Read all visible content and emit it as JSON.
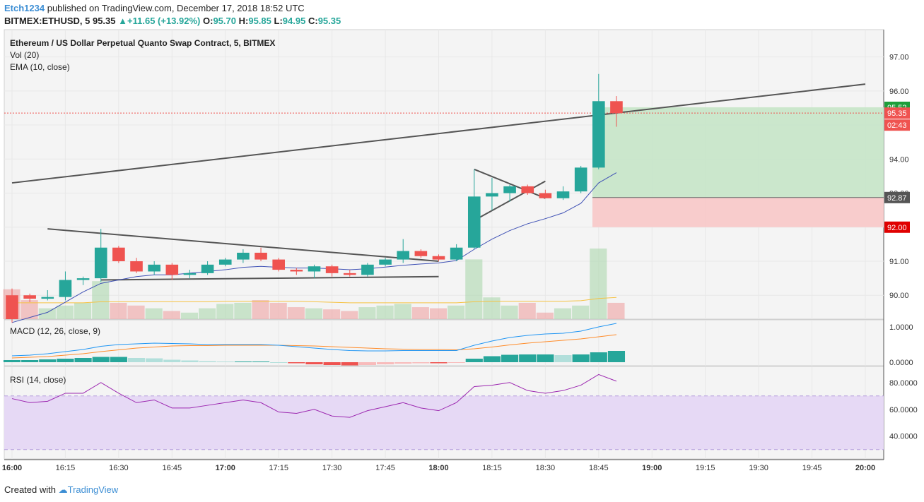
{
  "header": {
    "user": "Etch1234",
    "published": "published on TradingView.com, December 17, 2018 18:52 UTC",
    "symbol": "BITMEX:ETHUSD, 5",
    "last": "95.35",
    "change": "+11.65 (+13.92%)",
    "ohlc": {
      "o_label": "O:",
      "o": "95.70",
      "h_label": "H:",
      "h": "95.85",
      "l_label": "L:",
      "l": "94.95",
      "c_label": "C:",
      "c": "95.35"
    }
  },
  "footer": {
    "created_with": "Created with",
    "brand": "TradingView"
  },
  "colors": {
    "up": "#26a69a",
    "down": "#ef5350",
    "ema": "#3f51b5",
    "macd": "#2196f3",
    "signal": "#ff8c2a",
    "rsi": "#9c27b0",
    "vol_ma": "#f5c242",
    "profit_zone": "#c8e6c9",
    "loss_zone": "#f8c9c9",
    "trendline": "#555555"
  },
  "chart_data": [
    {
      "type": "candlestick",
      "title": "Ethereum / US Dollar Perpetual Quanto Swap Contract, 5, BITMEX",
      "indicators": [
        "Vol (20)",
        "EMA (10, close)"
      ],
      "x": [
        "16:00",
        "16:05",
        "16:10",
        "16:15",
        "16:20",
        "16:25",
        "16:30",
        "16:35",
        "16:40",
        "16:45",
        "16:50",
        "16:55",
        "17:00",
        "17:05",
        "17:10",
        "17:15",
        "17:20",
        "17:25",
        "17:30",
        "17:35",
        "17:40",
        "17:45",
        "17:50",
        "17:55",
        "18:00",
        "18:05",
        "18:10",
        "18:15",
        "18:20",
        "18:25",
        "18:30",
        "18:35",
        "18:40",
        "18:45",
        "18:50"
      ],
      "ohlc": [
        [
          90.0,
          90.2,
          89.2,
          89.3
        ],
        [
          90.0,
          90.05,
          89.8,
          89.9
        ],
        [
          89.9,
          90.15,
          89.85,
          89.95
        ],
        [
          89.95,
          90.7,
          89.85,
          90.45
        ],
        [
          90.45,
          90.55,
          90.3,
          90.5
        ],
        [
          90.5,
          91.95,
          90.4,
          91.4
        ],
        [
          91.4,
          91.45,
          90.95,
          91.0
        ],
        [
          91.0,
          91.1,
          90.65,
          90.7
        ],
        [
          90.7,
          91.0,
          90.6,
          90.9
        ],
        [
          90.9,
          90.95,
          90.45,
          90.6
        ],
        [
          90.6,
          90.75,
          90.5,
          90.65
        ],
        [
          90.65,
          91.0,
          90.6,
          90.9
        ],
        [
          90.9,
          91.1,
          90.85,
          91.05
        ],
        [
          91.05,
          91.35,
          90.95,
          91.25
        ],
        [
          91.25,
          91.4,
          91.0,
          91.05
        ],
        [
          91.05,
          91.1,
          90.7,
          90.75
        ],
        [
          90.75,
          90.8,
          90.6,
          90.7
        ],
        [
          90.7,
          90.9,
          90.5,
          90.85
        ],
        [
          90.85,
          90.9,
          90.55,
          90.65
        ],
        [
          90.65,
          90.75,
          90.55,
          90.6
        ],
        [
          90.6,
          90.95,
          90.55,
          90.9
        ],
        [
          90.9,
          91.1,
          90.85,
          91.05
        ],
        [
          91.05,
          91.65,
          90.95,
          91.3
        ],
        [
          91.3,
          91.35,
          91.1,
          91.15
        ],
        [
          91.15,
          91.2,
          91.0,
          91.05
        ],
        [
          91.05,
          91.5,
          91.0,
          91.4
        ],
        [
          91.4,
          93.7,
          91.35,
          92.9
        ],
        [
          92.9,
          93.45,
          92.5,
          93.0
        ],
        [
          93.0,
          93.25,
          92.75,
          93.2
        ],
        [
          93.2,
          93.25,
          92.95,
          93.0
        ],
        [
          93.0,
          93.1,
          92.9,
          92.85
        ],
        [
          92.85,
          93.2,
          92.8,
          93.05
        ],
        [
          93.05,
          93.8,
          93.0,
          93.75
        ],
        [
          93.75,
          96.5,
          93.7,
          95.7
        ],
        [
          95.7,
          95.85,
          94.95,
          95.35
        ]
      ],
      "ema": [
        89.2,
        89.35,
        89.5,
        89.8,
        90.1,
        90.35,
        90.45,
        90.55,
        90.6,
        90.6,
        90.65,
        90.7,
        90.75,
        90.82,
        90.85,
        90.82,
        90.8,
        90.8,
        90.78,
        90.75,
        90.78,
        90.83,
        90.88,
        90.92,
        90.95,
        91.02,
        91.35,
        91.65,
        91.9,
        92.1,
        92.25,
        92.42,
        92.7,
        93.3,
        93.6
      ],
      "volume": [
        0.55,
        0.35,
        0.2,
        0.25,
        0.3,
        0.7,
        0.3,
        0.25,
        0.2,
        0.15,
        0.12,
        0.2,
        0.28,
        0.3,
        0.35,
        0.3,
        0.22,
        0.2,
        0.18,
        0.15,
        0.22,
        0.25,
        0.28,
        0.22,
        0.2,
        0.25,
        1.1,
        0.4,
        0.25,
        0.3,
        0.12,
        0.2,
        0.25,
        1.3,
        0.3
      ],
      "vol_ma": [
        0.3,
        0.3,
        0.3,
        0.3,
        0.3,
        0.32,
        0.32,
        0.32,
        0.32,
        0.32,
        0.32,
        0.32,
        0.33,
        0.33,
        0.33,
        0.33,
        0.33,
        0.32,
        0.31,
        0.3,
        0.3,
        0.3,
        0.3,
        0.3,
        0.3,
        0.3,
        0.32,
        0.33,
        0.33,
        0.33,
        0.33,
        0.33,
        0.34,
        0.38,
        0.4
      ],
      "price_scale": [
        "97.00",
        "96.00",
        "95.00",
        "94.00",
        "93.00",
        "92.00",
        "91.00",
        "90.00"
      ],
      "price_labels": {
        "target": "95.52",
        "last": "95.35",
        "countdown": "02:43",
        "entry": "92.87",
        "stop": "92.00"
      },
      "time_labels": [
        "16:00",
        "16:15",
        "16:30",
        "16:45",
        "17:00",
        "17:15",
        "17:30",
        "17:45",
        "18:00",
        "18:15",
        "18:30",
        "18:45",
        "19:00",
        "19:15",
        "19:30",
        "19:45",
        "20:00"
      ],
      "bold_time_labels": [
        "16:00",
        "17:00",
        "18:00",
        "19:00",
        "20:00"
      ],
      "ylim": [
        89.3,
        97.8
      ]
    },
    {
      "type": "line",
      "title": "MACD (12, 26, close, 9)",
      "macd": [
        0.18,
        0.2,
        0.24,
        0.3,
        0.36,
        0.45,
        0.5,
        0.52,
        0.54,
        0.53,
        0.52,
        0.5,
        0.5,
        0.5,
        0.5,
        0.48,
        0.44,
        0.4,
        0.36,
        0.33,
        0.32,
        0.32,
        0.33,
        0.33,
        0.33,
        0.33,
        0.48,
        0.6,
        0.7,
        0.76,
        0.8,
        0.82,
        0.88,
        1.0,
        1.1
      ],
      "signal": [
        0.12,
        0.14,
        0.16,
        0.2,
        0.24,
        0.3,
        0.35,
        0.4,
        0.43,
        0.46,
        0.47,
        0.47,
        0.48,
        0.48,
        0.48,
        0.48,
        0.47,
        0.46,
        0.44,
        0.42,
        0.4,
        0.38,
        0.37,
        0.36,
        0.36,
        0.35,
        0.38,
        0.43,
        0.49,
        0.54,
        0.58,
        0.62,
        0.66,
        0.72,
        0.78
      ],
      "histogram": [
        0.06,
        0.06,
        0.08,
        0.1,
        0.12,
        0.15,
        0.15,
        0.12,
        0.11,
        0.07,
        0.05,
        0.03,
        0.02,
        0.02,
        0.02,
        0.0,
        -0.03,
        -0.06,
        -0.08,
        -0.09,
        -0.08,
        -0.06,
        -0.04,
        -0.03,
        -0.03,
        -0.02,
        0.1,
        0.17,
        0.21,
        0.22,
        0.22,
        0.2,
        0.22,
        0.28,
        0.32
      ],
      "scale": [
        "1.0000",
        "0.0000"
      ],
      "ylim": [
        -0.1,
        1.2
      ]
    },
    {
      "type": "line",
      "title": "RSI (14, close)",
      "rsi": [
        68,
        65,
        66,
        72,
        72,
        80,
        72,
        65,
        67,
        61,
        61,
        63,
        65,
        67,
        65,
        58,
        57,
        60,
        55,
        54,
        59,
        62,
        65,
        61,
        59,
        65,
        77,
        78,
        80,
        74,
        72,
        74,
        78,
        86,
        81
      ],
      "band": [
        30,
        70
      ],
      "scale": [
        "80.0000",
        "60.0000",
        "40.0000"
      ],
      "ylim": [
        23,
        92
      ]
    }
  ]
}
